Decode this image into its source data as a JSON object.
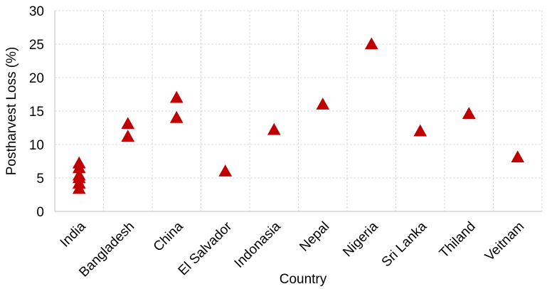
{
  "chart_data": {
    "type": "scatter",
    "title": "",
    "xlabel": "Country",
    "ylabel": "Postharvest Loss (%)",
    "ylim": [
      0,
      30
    ],
    "yticks": [
      "0",
      "5",
      "10",
      "15",
      "20",
      "25",
      "30"
    ],
    "grid": true,
    "legend": "none",
    "marker": "triangle",
    "marker_color": "#C00000",
    "categories": [
      "India",
      "Bangladesh",
      "China",
      "El Salvador",
      "Indonasia",
      "Nepal",
      "Nigeria",
      "Sri Lanka",
      "Thiland",
      "Veitnam"
    ],
    "points": [
      {
        "x": "India",
        "y": 7.2
      },
      {
        "x": "India",
        "y": 6.5
      },
      {
        "x": "India",
        "y": 5.4
      },
      {
        "x": "India",
        "y": 5.0
      },
      {
        "x": "India",
        "y": 4.2
      },
      {
        "x": "India",
        "y": 3.4
      },
      {
        "x": "Bangladesh",
        "y": 13.1
      },
      {
        "x": "Bangladesh",
        "y": 11.2
      },
      {
        "x": "China",
        "y": 17.0
      },
      {
        "x": "China",
        "y": 14.0
      },
      {
        "x": "El Salvador",
        "y": 6.0
      },
      {
        "x": "Indonasia",
        "y": 12.2
      },
      {
        "x": "Nepal",
        "y": 16.0
      },
      {
        "x": "Nigeria",
        "y": 25.0
      },
      {
        "x": "Sri Lanka",
        "y": 12.0
      },
      {
        "x": "Thiland",
        "y": 14.6
      },
      {
        "x": "Veitnam",
        "y": 8.1
      }
    ]
  }
}
